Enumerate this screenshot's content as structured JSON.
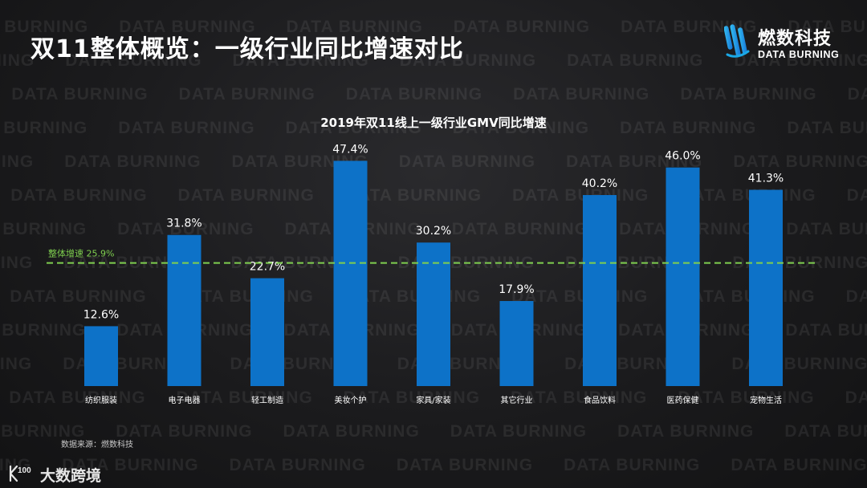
{
  "slide": {
    "title": "双11整体概览：一级行业同比增速对比",
    "source": "数据来源：燃数科技"
  },
  "logo": {
    "name_cn": "燃数科技",
    "name_en": "DATA BURNING",
    "icon": "data-burning-logo-icon",
    "accent": "#1aa8e6"
  },
  "watermark": {
    "text": "DATA BURNING"
  },
  "footer_brand": {
    "text": "大数跨境",
    "icon": "k100-logo-icon"
  },
  "chart_data": {
    "type": "bar",
    "title": "2019年双11线上一级行业GMV同比增速",
    "categories": [
      "纺织服装",
      "电子电器",
      "轻工制造",
      "美妆个护",
      "家具/家装",
      "其它行业",
      "食品饮料",
      "医药保健",
      "宠物生活"
    ],
    "values": [
      12.6,
      31.8,
      22.7,
      47.4,
      30.2,
      17.9,
      40.2,
      46.0,
      41.3
    ],
    "value_labels": [
      "12.6%",
      "31.8%",
      "22.7%",
      "47.4%",
      "30.2%",
      "17.9%",
      "40.2%",
      "46.0%",
      "41.3%"
    ],
    "ylim": [
      0,
      50
    ],
    "bar_color": "#0d72c8",
    "reference_line": {
      "label": "整体增速 25.9%",
      "value": 25.9,
      "color": "#7fcf4f"
    },
    "grid": false,
    "legend": "none"
  }
}
